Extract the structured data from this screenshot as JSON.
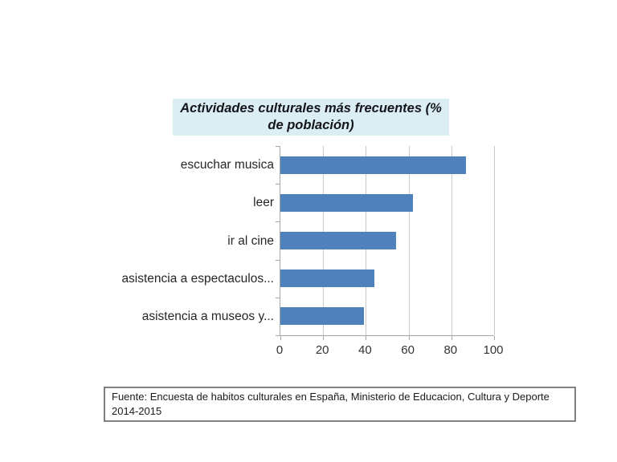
{
  "chart_data": {
    "type": "bar",
    "orientation": "horizontal",
    "title": "Actividades culturales más frecuentes (% de población)",
    "categories": [
      "escuchar musica",
      "leer",
      "ir al cine",
      "asistencia a espectaculos...",
      "asistencia a museos y..."
    ],
    "values": [
      87,
      62,
      54,
      44,
      39
    ],
    "xlim": [
      0,
      100
    ],
    "xticks": [
      0,
      20,
      40,
      60,
      80,
      100
    ],
    "grid": true,
    "legend": false,
    "xlabel": "",
    "ylabel": "",
    "bar_color": "#4f81bd",
    "title_bg_color": "#daeef3",
    "gridline_color": "#c9c9c9",
    "axis_color": "#a6a6a6"
  },
  "footer": {
    "lines": [
      "Fuente: Encuesta de habitos culturales en España, Ministerio de Educacion, Cultura y Deporte",
      "2014-2015"
    ]
  }
}
